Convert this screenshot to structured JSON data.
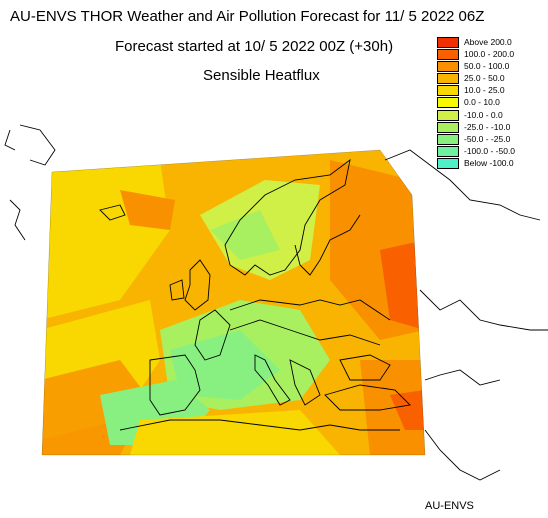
{
  "header": {
    "title": "AU-ENVS THOR Weather and Air Pollution Forecast for 11/ 5 2022  06Z",
    "subtitle": "Forecast started at 10/ 5 2022  00Z (+30h)",
    "parameter": "Sensible Heatflux"
  },
  "legend": {
    "items": [
      {
        "label": "Above    200.0",
        "color": "#f03000"
      },
      {
        "label": "100.0  -  200.0",
        "color": "#f86000"
      },
      {
        "label": "50.0  -  100.0",
        "color": "#f89000"
      },
      {
        "label": "25.0  -    50.0",
        "color": "#f8b400"
      },
      {
        "label": "10.0  -    25.0",
        "color": "#f8d800"
      },
      {
        "label": "0.0  -    10.0",
        "color": "#f8f800"
      },
      {
        "label": "-10.0  -      0.0",
        "color": "#d0f048"
      },
      {
        "label": "-25.0  -  -10.0",
        "color": "#a8f060"
      },
      {
        "label": "-50.0  -  -25.0",
        "color": "#88f080"
      },
      {
        "label": "-100.0  -  -50.0",
        "color": "#70f0a0"
      },
      {
        "label": "Below  -100.0",
        "color": "#50f0c8"
      }
    ]
  },
  "credit": "AU-ENVS"
}
